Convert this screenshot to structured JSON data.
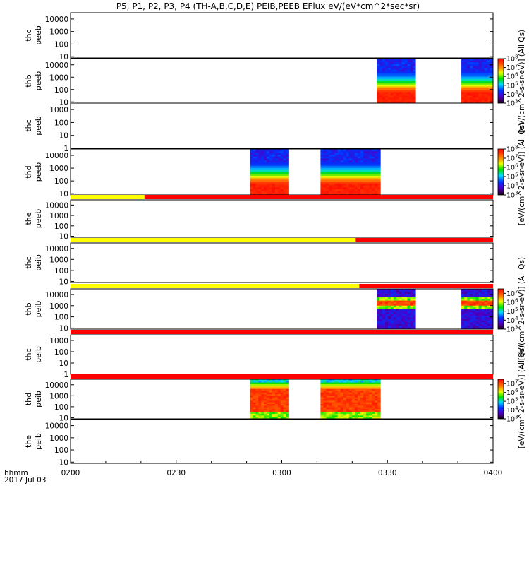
{
  "chart_data": {
    "type": "heatmap",
    "title": "P5, P1, P2, P3, P4 (TH-A,B,C,D,E) PEIB,PEEB EFlux eV/(eV*cm^2*sec*sr)",
    "x_axis": {
      "range": [
        "0200",
        "0400"
      ],
      "ticks": [
        "0200",
        "0230",
        "0300",
        "0330",
        "0400"
      ],
      "corner_label": "hhmm",
      "date_label": "2017 Jul 03"
    },
    "colorbar_labels": [
      "[eV/(cm^2-s-sr-eV)] (All Qs)",
      "[eV/(cm^2-s-sr-eV)] (All Qs)",
      "[eV/(cm^2-s-sr-eV)] (All Qs)",
      "[eV/(cm^2-s-sr-eV)] (All Qs)"
    ],
    "panels": [
      {
        "name": "thc peeb",
        "label1": "thc",
        "label2": "peeb",
        "yticks": [
          "10",
          "100",
          "1000",
          "10000"
        ],
        "ymin_exp": 0.9,
        "ymax_exp": 4.5,
        "colorbar": null,
        "blocks": [],
        "status_bar": null
      },
      {
        "name": "thb peeb",
        "label1": "thb",
        "label2": "peeb",
        "yticks": [
          "10",
          "100",
          "1000",
          "10000"
        ],
        "ymin_exp": 0.9,
        "ymax_exp": 4.5,
        "colorbar": {
          "ticks": [
            "10^3",
            "10^4",
            "10^5",
            "10^6",
            "10^7",
            "10^8"
          ],
          "min_exp": 3,
          "max_exp": 8
        },
        "blocks": [
          {
            "start": "0327",
            "end": "0338",
            "profile": "electron"
          },
          {
            "start": "0351",
            "end": "0400",
            "profile": "electron"
          }
        ],
        "status_bar": null
      },
      {
        "name": "thc peeb",
        "label1": "thc",
        "label2": "peeb",
        "yticks": [
          "1",
          "10",
          "100",
          "1000"
        ],
        "ymin_exp": 0,
        "ymax_exp": 3.5,
        "colorbar": null,
        "blocks": [],
        "status_bar": null
      },
      {
        "name": "thd peeb",
        "label1": "thd",
        "label2": "peeb",
        "yticks": [
          "10",
          "100",
          "1000",
          "10000"
        ],
        "ymin_exp": 0.9,
        "ymax_exp": 4.5,
        "colorbar": {
          "ticks": [
            "10^3",
            "10^4",
            "10^5",
            "10^6",
            "10^7",
            "10^8"
          ],
          "min_exp": 3,
          "max_exp": 8
        },
        "blocks": [
          {
            "start": "0251",
            "end": "0302",
            "profile": "electron"
          },
          {
            "start": "0311",
            "end": "0328",
            "profile": "electron"
          }
        ],
        "status_bar": null
      },
      {
        "name": "the peeb",
        "label1": "the",
        "label2": "peeb",
        "yticks": [
          "10",
          "100",
          "1000",
          "10000"
        ],
        "ymin_exp": 0.9,
        "ymax_exp": 4.5,
        "colorbar": null,
        "blocks": [],
        "status_bar": {
          "yellow_until": "0221"
        }
      },
      {
        "name": "thc peib",
        "label1": "thc",
        "label2": "peib",
        "yticks": [
          "10",
          "100",
          "1000",
          "10000"
        ],
        "ymin_exp": 0.9,
        "ymax_exp": 4.5,
        "colorbar": null,
        "blocks": [],
        "status_bar": {
          "yellow_until": "0321"
        }
      },
      {
        "name": "thb peib",
        "label1": "thb",
        "label2": "peib",
        "yticks": [
          "10",
          "100",
          "1000",
          "10000"
        ],
        "ymin_exp": 0.9,
        "ymax_exp": 4.5,
        "colorbar": {
          "ticks": [
            "10^3",
            "10^4",
            "10^5",
            "10^6",
            "10^7"
          ],
          "min_exp": 3,
          "max_exp": 7.5
        },
        "blocks": [
          {
            "start": "0327",
            "end": "0338",
            "profile": "ion_band"
          },
          {
            "start": "0351",
            "end": "0400",
            "profile": "ion_band"
          }
        ],
        "status_bar": {
          "yellow_until": "0322"
        }
      },
      {
        "name": "thc peib",
        "label1": "thc",
        "label2": "peib",
        "yticks": [
          "1",
          "10",
          "100",
          "1000"
        ],
        "ymin_exp": 0,
        "ymax_exp": 3.5,
        "colorbar": null,
        "blocks": [],
        "status_bar": {
          "yellow_until": null
        }
      },
      {
        "name": "thd peib",
        "label1": "thd",
        "label2": "peib",
        "yticks": [
          "10",
          "100",
          "1000",
          "10000"
        ],
        "ymin_exp": 0.9,
        "ymax_exp": 4.5,
        "colorbar": {
          "ticks": [
            "10^3",
            "10^4",
            "10^5",
            "10^6",
            "10^7"
          ],
          "min_exp": 3,
          "max_exp": 7.5
        },
        "blocks": [
          {
            "start": "0251",
            "end": "0302",
            "profile": "ion"
          },
          {
            "start": "0311",
            "end": "0328",
            "profile": "ion"
          }
        ],
        "status_bar": {
          "yellow_until": null
        }
      },
      {
        "name": "the peib",
        "label1": "the",
        "label2": "peib",
        "yticks": [
          "10",
          "100",
          "1000",
          "10000"
        ],
        "ymin_exp": 0.9,
        "ymax_exp": 4.5,
        "colorbar": null,
        "blocks": [],
        "status_bar": null
      }
    ]
  }
}
